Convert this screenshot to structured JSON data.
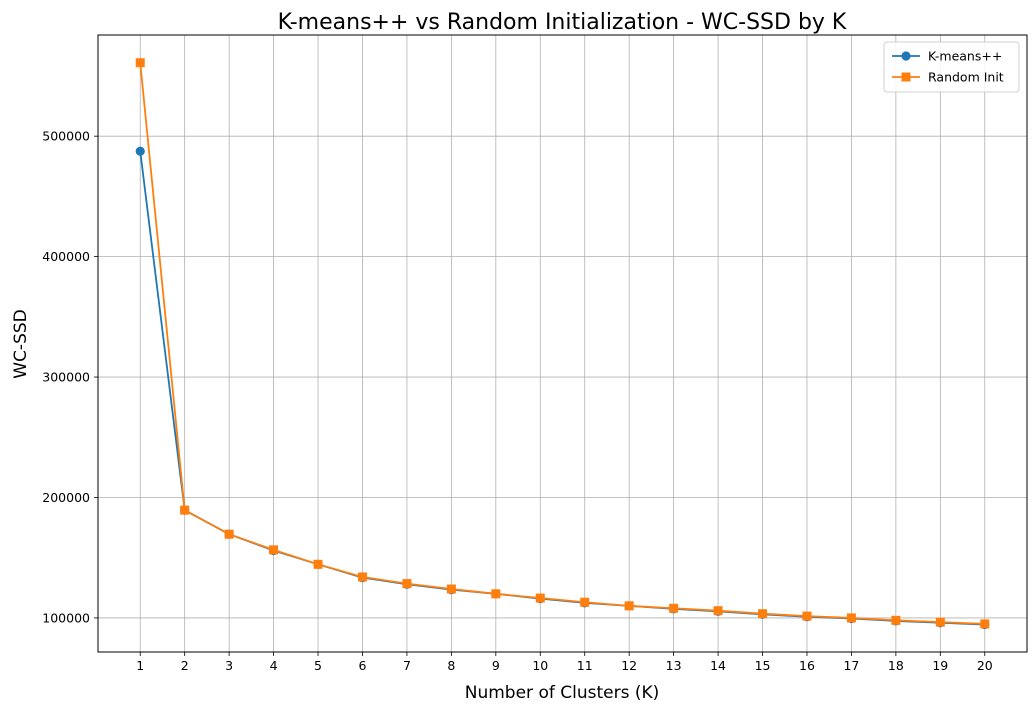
{
  "chart_data": {
    "type": "line",
    "title": "K-means++ vs Random Initialization - WC-SSD by K",
    "xlabel": "Number of Clusters (K)",
    "ylabel": "WC-SSD",
    "x": [
      1,
      2,
      3,
      4,
      5,
      6,
      7,
      8,
      9,
      10,
      11,
      12,
      13,
      14,
      15,
      16,
      17,
      18,
      19,
      20
    ],
    "xticks": [
      "1",
      "2",
      "3",
      "4",
      "5",
      "6",
      "7",
      "8",
      "9",
      "10",
      "11",
      "12",
      "13",
      "14",
      "15",
      "16",
      "17",
      "18",
      "19",
      "20"
    ],
    "xlim": [
      0.05,
      20.95
    ],
    "ylim": [
      71700,
      584000
    ],
    "yticks": [
      100000,
      200000,
      300000,
      400000,
      500000
    ],
    "ytick_labels": [
      "100000",
      "200000",
      "300000",
      "400000",
      "500000"
    ],
    "grid": true,
    "legend_position": "top-right",
    "series": [
      {
        "name": "K-means++",
        "color": "#1f77b4",
        "marker": "circle",
        "values": [
          487500,
          189500,
          169500,
          156000,
          144500,
          133500,
          128000,
          123500,
          120000,
          116000,
          112500,
          110000,
          107500,
          105500,
          103000,
          101000,
          99500,
          97500,
          96000,
          94500
        ]
      },
      {
        "name": "Random Init",
        "color": "#ff7f0e",
        "marker": "square",
        "values": [
          561000,
          189500,
          169500,
          156500,
          144500,
          134000,
          128500,
          124000,
          120000,
          116500,
          113000,
          110000,
          108000,
          106000,
          103500,
          101500,
          100000,
          98000,
          96500,
          95000
        ]
      }
    ]
  }
}
